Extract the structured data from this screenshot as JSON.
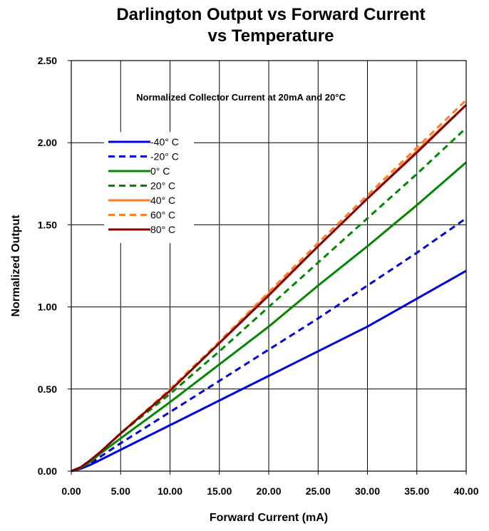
{
  "chart_data": {
    "type": "line",
    "title": [
      "Darlington Output vs Forward Current",
      "vs Temperature"
    ],
    "xlabel": "Forward Current (mA)",
    "ylabel": "Normalized Output",
    "annotation": "Normalized Collector Current at 20mA and 20°C",
    "xlim": [
      0,
      40
    ],
    "ylim": [
      0,
      2.5
    ],
    "x_ticks": [
      "0.00",
      "5.00",
      "10.00",
      "15.00",
      "20.00",
      "25.00",
      "30.00",
      "35.00",
      "40.00"
    ],
    "y_ticks": [
      "0.00",
      "0.50",
      "1.00",
      "1.50",
      "2.00",
      "2.50"
    ],
    "grid": true,
    "legend_position": "upper-left",
    "x": [
      0,
      1,
      2,
      3,
      5,
      10,
      15,
      20,
      25,
      30,
      35,
      40
    ],
    "series": [
      {
        "name": "-40° C",
        "color": "#0000dd",
        "dash": false,
        "values": [
          0,
          0.015,
          0.04,
          0.07,
          0.13,
          0.28,
          0.43,
          0.58,
          0.73,
          0.88,
          1.05,
          1.22
        ]
      },
      {
        "name": "-20° C",
        "color": "#0000dd",
        "dash": true,
        "values": [
          0,
          0.02,
          0.05,
          0.09,
          0.17,
          0.36,
          0.55,
          0.74,
          0.93,
          1.13,
          1.33,
          1.54
        ]
      },
      {
        "name": "0° C",
        "color": "#008800",
        "dash": false,
        "values": [
          0,
          0.02,
          0.06,
          0.11,
          0.2,
          0.42,
          0.65,
          0.88,
          1.13,
          1.37,
          1.62,
          1.88
        ]
      },
      {
        "name": "20° C",
        "color": "#008800",
        "dash": true,
        "values": [
          0,
          0.025,
          0.07,
          0.12,
          0.23,
          0.47,
          0.73,
          1.0,
          1.27,
          1.54,
          1.81,
          2.09
        ]
      },
      {
        "name": "40° C",
        "color": "#ff7f27",
        "dash": false,
        "values": [
          0,
          0.025,
          0.07,
          0.12,
          0.23,
          0.49,
          0.78,
          1.08,
          1.37,
          1.66,
          1.95,
          2.23
        ]
      },
      {
        "name": "60° C",
        "color": "#ff7f27",
        "dash": true,
        "values": [
          0,
          0.025,
          0.07,
          0.12,
          0.23,
          0.5,
          0.79,
          1.09,
          1.39,
          1.68,
          1.97,
          2.26
        ]
      },
      {
        "name": "80° C",
        "color": "#800000",
        "dash": false,
        "values": [
          0,
          0.025,
          0.07,
          0.12,
          0.23,
          0.49,
          0.78,
          1.07,
          1.37,
          1.66,
          1.94,
          2.23
        ]
      }
    ]
  }
}
